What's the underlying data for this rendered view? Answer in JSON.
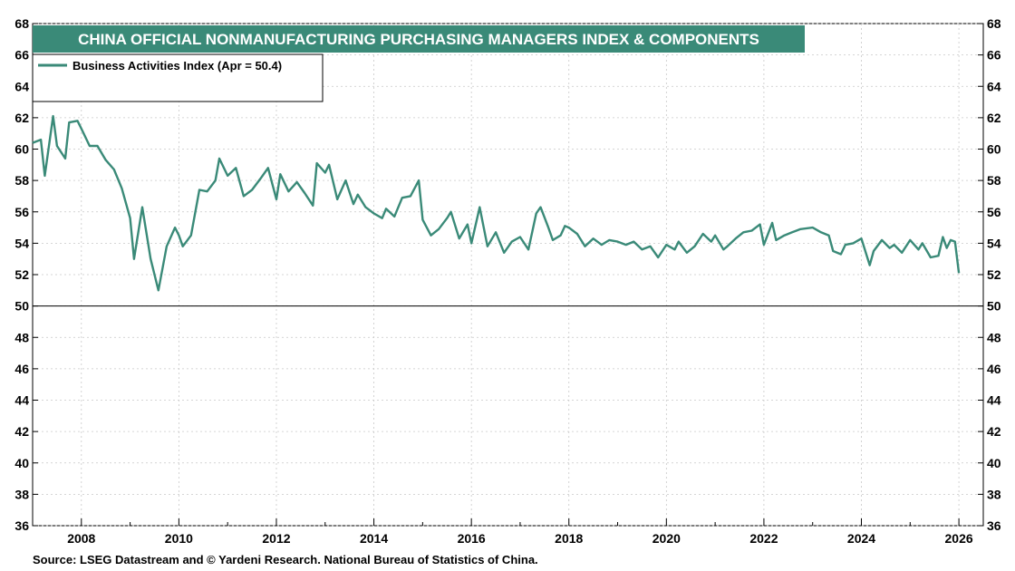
{
  "chart_data": {
    "type": "line",
    "title": "CHINA OFFICIAL NONMANUFACTURING PURCHASING MANAGERS INDEX & COMPONENTS",
    "source": "Source: LSEG Datastream and © Yardeni Research. National Bureau of Statistics of China.",
    "ylim": [
      36,
      68
    ],
    "yticks": [
      36,
      38,
      40,
      42,
      44,
      46,
      48,
      50,
      52,
      54,
      56,
      58,
      60,
      62,
      64,
      66,
      68
    ],
    "xlim": [
      2007.0,
      2026.5
    ],
    "xticks": [
      2008,
      2010,
      2012,
      2014,
      2016,
      2018,
      2020,
      2022,
      2024,
      2026
    ],
    "reference_line": 50,
    "grid": true,
    "legend_position": "top-left",
    "series": [
      {
        "name": "Business Activities Index  (Apr = 50.4)",
        "color": "#3a8a78",
        "points": [
          [
            2007.0,
            60.4
          ],
          [
            2007.17,
            60.6
          ],
          [
            2007.25,
            58.3
          ],
          [
            2007.42,
            62.1
          ],
          [
            2007.5,
            60.2
          ],
          [
            2007.67,
            59.4
          ],
          [
            2007.75,
            61.7
          ],
          [
            2007.92,
            61.8
          ],
          [
            2008.0,
            61.3
          ],
          [
            2008.17,
            60.2
          ],
          [
            2008.33,
            60.2
          ],
          [
            2008.5,
            59.3
          ],
          [
            2008.67,
            58.7
          ],
          [
            2008.83,
            57.5
          ],
          [
            2009.0,
            55.6
          ],
          [
            2009.08,
            53.0
          ],
          [
            2009.25,
            56.3
          ],
          [
            2009.42,
            53.0
          ],
          [
            2009.58,
            51.0
          ],
          [
            2009.75,
            53.8
          ],
          [
            2009.92,
            55.0
          ],
          [
            2010.0,
            54.5
          ],
          [
            2010.08,
            53.8
          ],
          [
            2010.25,
            54.5
          ],
          [
            2010.42,
            57.4
          ],
          [
            2010.58,
            57.3
          ],
          [
            2010.75,
            58.0
          ],
          [
            2010.83,
            59.4
          ],
          [
            2011.0,
            58.3
          ],
          [
            2011.17,
            58.8
          ],
          [
            2011.33,
            57.0
          ],
          [
            2011.5,
            57.4
          ],
          [
            2011.67,
            58.1
          ],
          [
            2011.83,
            58.8
          ],
          [
            2012.0,
            56.8
          ],
          [
            2012.08,
            58.4
          ],
          [
            2012.25,
            57.3
          ],
          [
            2012.42,
            57.9
          ],
          [
            2012.58,
            57.2
          ],
          [
            2012.75,
            56.4
          ],
          [
            2012.83,
            59.1
          ],
          [
            2013.0,
            58.5
          ],
          [
            2013.08,
            59.0
          ],
          [
            2013.25,
            56.8
          ],
          [
            2013.42,
            58.0
          ],
          [
            2013.58,
            56.5
          ],
          [
            2013.67,
            57.1
          ],
          [
            2013.83,
            56.3
          ],
          [
            2014.0,
            55.9
          ],
          [
            2014.17,
            55.6
          ],
          [
            2014.25,
            56.2
          ],
          [
            2014.42,
            55.7
          ],
          [
            2014.58,
            56.9
          ],
          [
            2014.75,
            57.0
          ],
          [
            2014.92,
            58.0
          ],
          [
            2015.0,
            55.5
          ],
          [
            2015.17,
            54.5
          ],
          [
            2015.33,
            54.9
          ],
          [
            2015.5,
            55.6
          ],
          [
            2015.58,
            56.0
          ],
          [
            2015.75,
            54.3
          ],
          [
            2015.92,
            55.2
          ],
          [
            2016.0,
            54.0
          ],
          [
            2016.17,
            56.3
          ],
          [
            2016.33,
            53.8
          ],
          [
            2016.5,
            54.7
          ],
          [
            2016.67,
            53.4
          ],
          [
            2016.83,
            54.1
          ],
          [
            2017.0,
            54.4
          ],
          [
            2017.17,
            53.6
          ],
          [
            2017.33,
            55.9
          ],
          [
            2017.42,
            56.3
          ],
          [
            2017.58,
            55.0
          ],
          [
            2017.67,
            54.2
          ],
          [
            2017.83,
            54.5
          ],
          [
            2017.92,
            55.1
          ],
          [
            2018.0,
            55.0
          ],
          [
            2018.17,
            54.6
          ],
          [
            2018.33,
            53.8
          ],
          [
            2018.5,
            54.3
          ],
          [
            2018.67,
            53.9
          ],
          [
            2018.83,
            54.2
          ],
          [
            2019.0,
            54.1
          ],
          [
            2019.17,
            53.9
          ],
          [
            2019.33,
            54.1
          ],
          [
            2019.5,
            53.6
          ],
          [
            2019.67,
            53.8
          ],
          [
            2019.83,
            53.1
          ],
          [
            2020.0,
            53.9
          ],
          [
            2020.17,
            53.6
          ],
          [
            2020.25,
            54.1
          ],
          [
            2020.42,
            53.4
          ],
          [
            2020.58,
            53.8
          ],
          [
            2020.75,
            54.6
          ],
          [
            2020.92,
            54.1
          ],
          [
            2021.0,
            54.5
          ],
          [
            2021.17,
            53.6
          ],
          [
            2021.25,
            53.8
          ],
          [
            2021.42,
            54.3
          ],
          [
            2021.58,
            54.7
          ],
          [
            2021.75,
            54.8
          ],
          [
            2021.92,
            55.2
          ],
          [
            2022.0,
            53.9
          ],
          [
            2022.17,
            55.3
          ],
          [
            2022.25,
            54.2
          ],
          [
            2022.42,
            54.5
          ],
          [
            2022.58,
            54.7
          ],
          [
            2022.75,
            54.9
          ],
          [
            2023.0,
            55.0
          ],
          [
            2023.17,
            54.7
          ],
          [
            2023.33,
            54.5
          ],
          [
            2023.42,
            53.5
          ],
          [
            2023.58,
            53.3
          ],
          [
            2023.67,
            53.9
          ],
          [
            2023.83,
            54.0
          ],
          [
            2024.0,
            54.3
          ],
          [
            2024.17,
            52.6
          ],
          [
            2024.25,
            53.5
          ],
          [
            2024.42,
            54.2
          ],
          [
            2024.58,
            53.7
          ],
          [
            2024.67,
            53.9
          ],
          [
            2024.83,
            53.4
          ],
          [
            2025.0,
            54.2
          ],
          [
            2025.17,
            53.6
          ],
          [
            2025.25,
            54.0
          ],
          [
            2025.42,
            53.1
          ],
          [
            2025.58,
            53.2
          ],
          [
            2025.67,
            54.4
          ],
          [
            2025.75,
            53.7
          ],
          [
            2025.83,
            54.2
          ],
          [
            2025.92,
            54.1
          ],
          [
            2026.0,
            52.1
          ]
        ]
      }
    ]
  }
}
